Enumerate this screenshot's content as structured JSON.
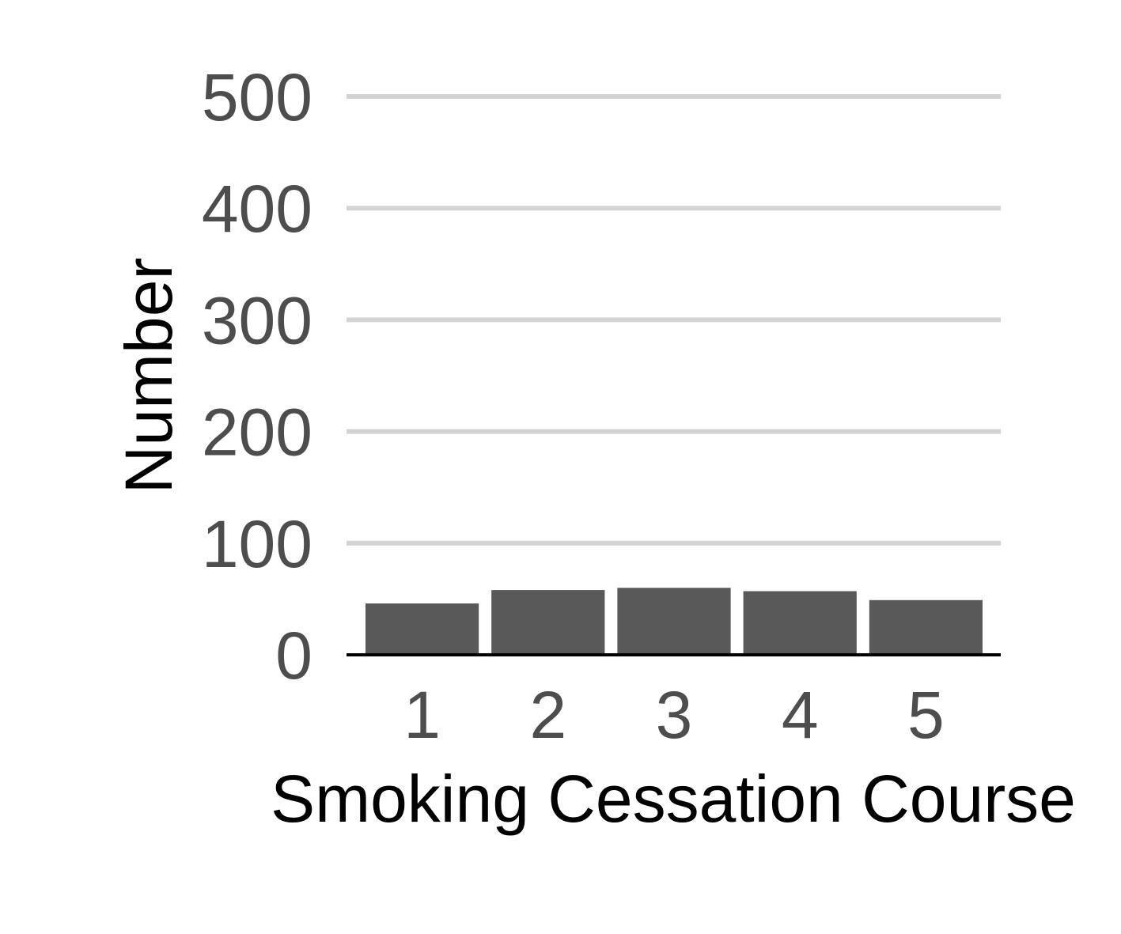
{
  "chart_data": {
    "type": "bar",
    "categories": [
      "1",
      "2",
      "3",
      "4",
      "5"
    ],
    "values": [
      46,
      58,
      60,
      57,
      49
    ],
    "title": "",
    "xlabel": "Smoking Cessation Course",
    "ylabel": "Number",
    "ylim": [
      0,
      500
    ],
    "yticks": [
      "0",
      "100",
      "200",
      "300",
      "400",
      "500"
    ],
    "grid": true,
    "legend": "none",
    "colors": {
      "bar": "#595959",
      "gridline": "#d3d3d3",
      "baseline": "#000000",
      "tick_text": "#4d4d4d",
      "axis_title": "#000000"
    }
  }
}
